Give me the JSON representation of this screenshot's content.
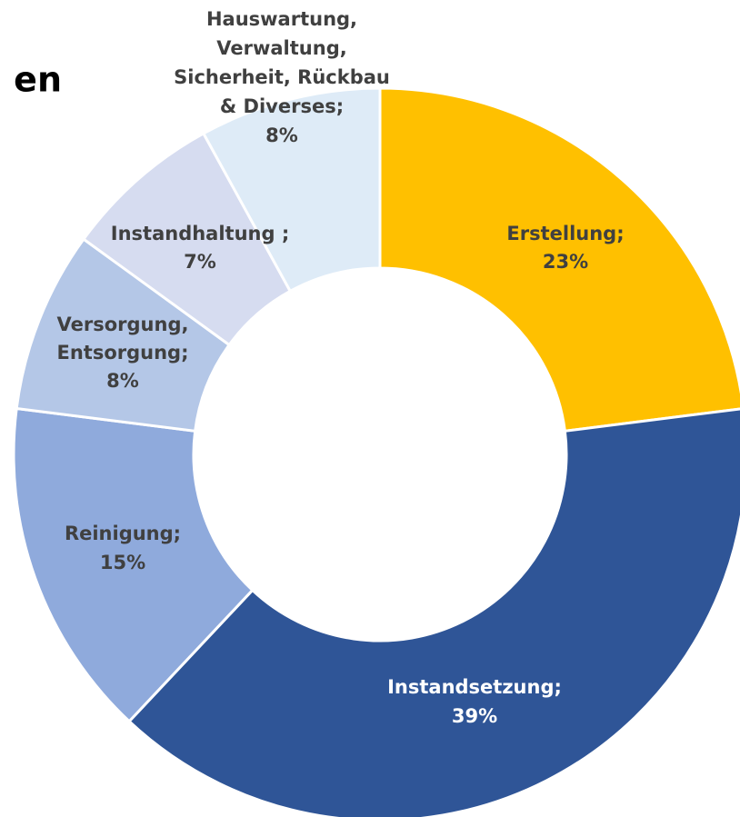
{
  "chart_data": {
    "type": "donut",
    "title": "en",
    "categories": [
      [
        "Erstellung;"
      ],
      [
        "Instandsetzung;"
      ],
      [
        "Reinigung;"
      ],
      [
        "Versorgung,",
        "Entsorgung;"
      ],
      [
        "Instandhaltung ;"
      ],
      [
        "Hauswartung,",
        "Verwaltung,",
        "Sicherheit, Rückbau",
        "& Diverses;"
      ]
    ],
    "values": [
      23,
      39,
      15,
      8,
      7,
      8
    ],
    "value_labels": [
      "23%",
      "39%",
      "15%",
      "8%",
      "7%",
      "8%"
    ],
    "colors": [
      "#ffc000",
      "#2f5597",
      "#8faadc",
      "#b4c7e7",
      "#d6dcf0",
      "#deebf7"
    ],
    "label_colors": [
      "#404040",
      "#ffffff",
      "#404040",
      "#404040",
      "#404040",
      "#404040"
    ]
  }
}
